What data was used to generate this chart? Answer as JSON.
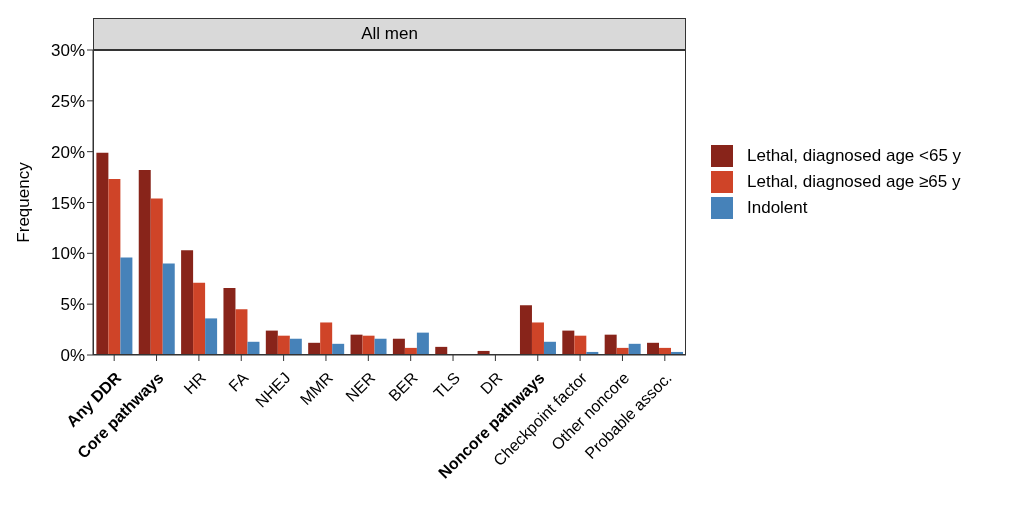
{
  "chart_data": {
    "type": "bar",
    "title": "All men",
    "ylabel": "Frequency",
    "categories": [
      "Any DDR",
      "Core pathways",
      "HR",
      "FA",
      "NHEJ",
      "MMR",
      "NER",
      "BER",
      "TLS",
      "DR",
      "Noncore pathways",
      "Checkpoint factor",
      "Other noncore",
      "Probable assoc."
    ],
    "series": [
      {
        "name": "Lethal, diagnosed age <65 y",
        "color": "#88241a",
        "values": [
          19.9,
          18.2,
          10.3,
          6.6,
          2.4,
          1.2,
          2.0,
          1.6,
          0.8,
          0.4,
          4.9,
          2.4,
          2.0,
          1.2
        ]
      },
      {
        "name": "Lethal, diagnosed age ≥65 y",
        "color": "#cf4428",
        "values": [
          17.3,
          15.4,
          7.1,
          4.5,
          1.9,
          3.2,
          1.9,
          0.7,
          0,
          0,
          3.2,
          1.9,
          0.7,
          0.7
        ]
      },
      {
        "name": "Indolent",
        "color": "#4682b9",
        "values": [
          9.6,
          9.0,
          3.6,
          1.3,
          1.6,
          1.1,
          1.6,
          2.2,
          0,
          0,
          1.3,
          0.3,
          1.1,
          0.3
        ]
      }
    ],
    "ylim": [
      0,
      30
    ],
    "yticks": [
      {
        "value": 0,
        "label": "0%"
      },
      {
        "value": 5,
        "label": "5%"
      },
      {
        "value": 10,
        "label": "10%"
      },
      {
        "value": 15,
        "label": "15%"
      },
      {
        "value": 20,
        "label": "20%"
      },
      {
        "value": 25,
        "label": "25%"
      },
      {
        "value": 30,
        "label": "30%"
      }
    ],
    "grid": false,
    "legend": "right"
  }
}
